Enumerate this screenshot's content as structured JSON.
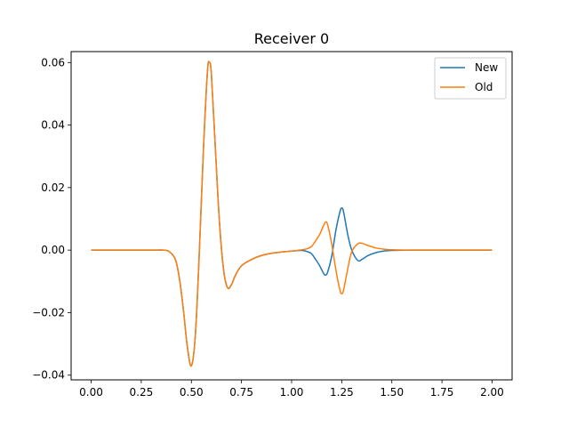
{
  "chart_data": {
    "type": "line",
    "title": "Receiver 0",
    "xlabel": "",
    "ylabel": "",
    "xlim": [
      -0.1,
      2.1
    ],
    "ylim": [
      -0.0415,
      0.0635
    ],
    "xticks": [
      0.0,
      0.25,
      0.5,
      0.75,
      1.0,
      1.25,
      1.5,
      1.75,
      2.0
    ],
    "xtick_labels": [
      "0.00",
      "0.25",
      "0.50",
      "0.75",
      "1.00",
      "1.25",
      "1.50",
      "1.75",
      "2.00"
    ],
    "yticks": [
      -0.04,
      -0.02,
      0.0,
      0.02,
      0.04,
      0.06
    ],
    "ytick_labels": [
      "−0.04",
      "−0.02",
      "0.00",
      "0.02",
      "0.04",
      "0.06"
    ],
    "grid": false,
    "legend": "top-right",
    "series": [
      {
        "name": "New",
        "color": "#1f77b4",
        "x": [
          0.0,
          0.1,
          0.2,
          0.3,
          0.36,
          0.39,
          0.42,
          0.44,
          0.46,
          0.48,
          0.5,
          0.52,
          0.54,
          0.56,
          0.58,
          0.59,
          0.6,
          0.62,
          0.64,
          0.66,
          0.68,
          0.7,
          0.72,
          0.75,
          0.8,
          0.85,
          0.9,
          0.95,
          1.0,
          1.05,
          1.08,
          1.1,
          1.12,
          1.14,
          1.16,
          1.17,
          1.18,
          1.2,
          1.22,
          1.24,
          1.25,
          1.26,
          1.28,
          1.3,
          1.33,
          1.35,
          1.38,
          1.42,
          1.46,
          1.5,
          1.6,
          1.7,
          1.8,
          1.9,
          2.0
        ],
        "y": [
          0.0,
          0.0,
          0.0,
          0.0,
          0.0,
          -0.0005,
          -0.003,
          -0.009,
          -0.019,
          -0.031,
          -0.037,
          -0.027,
          0.0,
          0.032,
          0.057,
          0.06,
          0.056,
          0.032,
          0.009,
          -0.006,
          -0.012,
          -0.011,
          -0.008,
          -0.005,
          -0.003,
          -0.0017,
          -0.001,
          -0.0006,
          -0.0003,
          -0.0001,
          -0.0005,
          -0.0012,
          -0.003,
          -0.005,
          -0.0075,
          -0.008,
          -0.007,
          -0.002,
          0.006,
          0.012,
          0.0135,
          0.012,
          0.005,
          0.0,
          -0.0033,
          -0.003,
          -0.0018,
          -0.0008,
          -0.0003,
          -0.0001,
          0.0,
          0.0,
          0.0,
          0.0,
          0.0
        ]
      },
      {
        "name": "Old",
        "color": "#ff7f0e",
        "x": [
          0.0,
          0.1,
          0.2,
          0.3,
          0.36,
          0.39,
          0.42,
          0.44,
          0.46,
          0.48,
          0.5,
          0.52,
          0.54,
          0.56,
          0.58,
          0.59,
          0.6,
          0.62,
          0.64,
          0.66,
          0.68,
          0.7,
          0.72,
          0.75,
          0.8,
          0.85,
          0.9,
          0.95,
          1.0,
          1.05,
          1.08,
          1.1,
          1.12,
          1.14,
          1.16,
          1.17,
          1.18,
          1.2,
          1.22,
          1.24,
          1.25,
          1.26,
          1.28,
          1.3,
          1.33,
          1.35,
          1.38,
          1.42,
          1.46,
          1.5,
          1.6,
          1.7,
          1.8,
          1.9,
          2.0
        ],
        "y": [
          0.0,
          0.0,
          0.0,
          0.0,
          0.0,
          -0.0005,
          -0.003,
          -0.009,
          -0.019,
          -0.031,
          -0.037,
          -0.027,
          0.0,
          0.032,
          0.057,
          0.06,
          0.056,
          0.032,
          0.009,
          -0.006,
          -0.012,
          -0.011,
          -0.008,
          -0.005,
          -0.003,
          -0.0017,
          -0.001,
          -0.0006,
          -0.0003,
          0.0001,
          0.0005,
          0.0012,
          0.003,
          0.005,
          0.008,
          0.009,
          0.008,
          0.002,
          -0.006,
          -0.0125,
          -0.014,
          -0.0125,
          -0.006,
          -0.0005,
          0.002,
          0.0022,
          0.0015,
          0.0007,
          0.0003,
          0.0001,
          0.0,
          0.0,
          0.0,
          0.0,
          0.0
        ]
      }
    ]
  }
}
